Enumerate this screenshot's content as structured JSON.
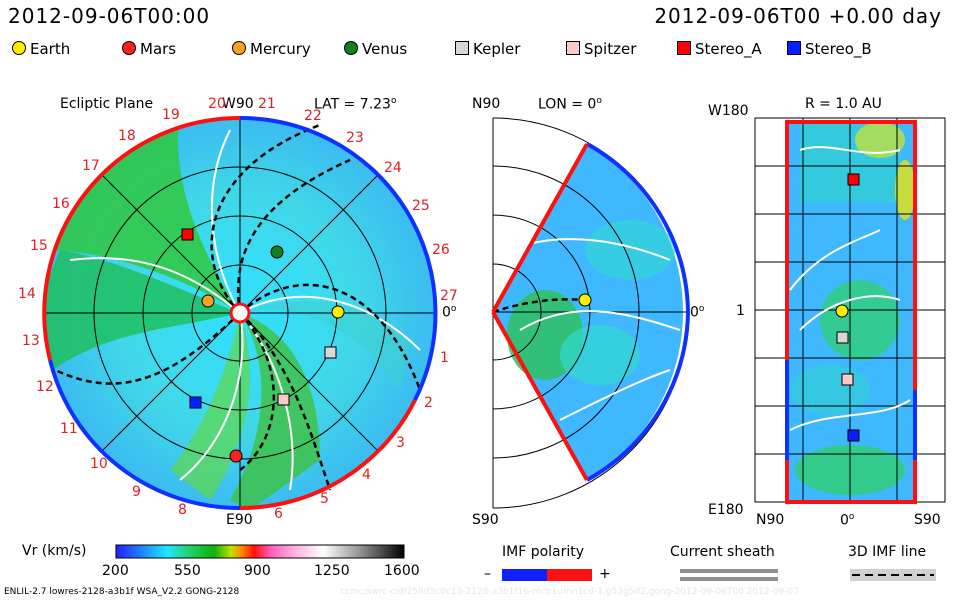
{
  "header": {
    "datetime_left": "2012-09-06T00:00",
    "datetime_right": "2012-09-06T00 +0.00 day"
  },
  "legend": [
    {
      "name": "Earth",
      "shape": "circle",
      "color": "#ffee00"
    },
    {
      "name": "Mars",
      "shape": "circle",
      "color": "#ff2020"
    },
    {
      "name": "Mercury",
      "shape": "circle",
      "color": "#ffa020"
    },
    {
      "name": "Venus",
      "shape": "circle",
      "color": "#108020"
    },
    {
      "name": "Kepler",
      "shape": "square",
      "color": "#d8d8d8"
    },
    {
      "name": "Spitzer",
      "shape": "square",
      "color": "#ffc8c8"
    },
    {
      "name": "Stereo_A",
      "shape": "square",
      "color": "#ff0000"
    },
    {
      "name": "Stereo_B",
      "shape": "square",
      "color": "#0020ff"
    }
  ],
  "panel_ecliptic": {
    "title": "Ecliptic Plane",
    "top_label": "W90",
    "bottom_label": "E90",
    "right_label": "0",
    "lat_label": "LAT = 7.23",
    "degree_mark": "o",
    "carrington_numbers": [
      "1",
      "2",
      "3",
      "4",
      "5",
      "6",
      "8",
      "9",
      "10",
      "11",
      "12",
      "13",
      "14",
      "15",
      "16",
      "17",
      "18",
      "19",
      "20",
      "21",
      "22",
      "23",
      "24",
      "25",
      "26",
      "27"
    ]
  },
  "panel_meridional": {
    "top_label": "N90",
    "bottom_label": "S90",
    "lon_label": "LON = 0",
    "right_label": "0",
    "degree_mark": "o"
  },
  "panel_radial": {
    "title": "R = 1.0 AU",
    "top_left": "W180",
    "mid_left": "1",
    "bottom_left": "E180",
    "x_left": "N90",
    "x_mid": "0",
    "x_right": "S90",
    "degree_mark": "o"
  },
  "colorbar": {
    "label": "Vr (km/s)",
    "ticks": [
      "200",
      "550",
      "900",
      "1250",
      "1600"
    ]
  },
  "imf_legend": {
    "title": "IMF polarity",
    "minus": "–",
    "plus": "+"
  },
  "sheath_legend": {
    "title": "Current sheath"
  },
  "imf3d_legend": {
    "title": "3D IMF line"
  },
  "footer": {
    "model_info": "ENLIL-2.7 lowres-2128-a3b1f WSA_V2.2 GONG-2128",
    "watermark": "ccmc/swrc-cid/258d3c0c13-2128-a3b1f16-mcp1umn1cd-1,g53g5d2,gong-2012-09-06T00  2012-09-07"
  }
}
